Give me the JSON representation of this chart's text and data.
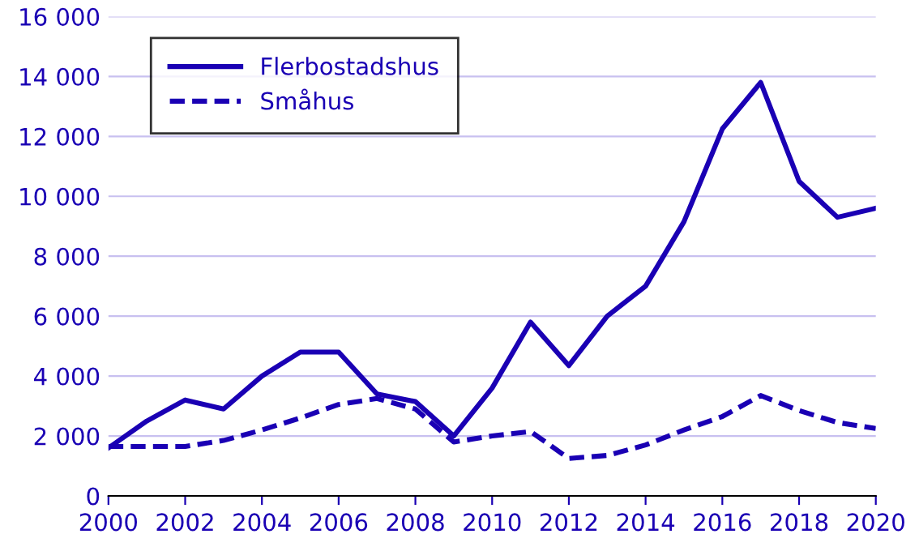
{
  "chart_data": {
    "type": "line",
    "x": [
      2000,
      2001,
      2002,
      2003,
      2004,
      2005,
      2006,
      2007,
      2008,
      2009,
      2010,
      2011,
      2012,
      2013,
      2014,
      2015,
      2016,
      2017,
      2018,
      2019,
      2020
    ],
    "series": [
      {
        "name": "Flerbostadshus",
        "color": "#1a00b4",
        "line_style": "solid",
        "values": [
          1600,
          2500,
          3200,
          2900,
          4000,
          4800,
          4800,
          3400,
          3150,
          2000,
          3600,
          5800,
          4350,
          6000,
          7000,
          9150,
          12250,
          13800,
          10500,
          9300,
          9600
        ]
      },
      {
        "name": "Småhus",
        "color": "#1a00b4",
        "line_style": "dashed",
        "values": [
          1650,
          1650,
          1650,
          1850,
          2200,
          2600,
          3050,
          3250,
          2900,
          1800,
          2000,
          2150,
          1250,
          1350,
          1700,
          2200,
          2650,
          3350,
          2850,
          2450,
          2250
        ]
      }
    ],
    "xlim": [
      2000,
      2020
    ],
    "xticks": [
      2000,
      2002,
      2004,
      2006,
      2008,
      2010,
      2012,
      2014,
      2016,
      2018,
      2020
    ],
    "ylim": [
      0,
      16000
    ],
    "yticks": [
      0,
      {
        "value": 2000,
        "label": "2 000"
      },
      {
        "value": 4000,
        "label": "4 000"
      },
      {
        "value": 6000,
        "label": "6 000"
      },
      {
        "value": 8000,
        "label": "8 000"
      },
      {
        "value": 10000,
        "label": "10 000"
      },
      {
        "value": 12000,
        "label": "12 000"
      },
      {
        "value": 14000,
        "label": "14 000"
      },
      {
        "value": 16000,
        "label": "16 000"
      }
    ],
    "grid": "y",
    "legend": "top left",
    "marker": "none"
  }
}
